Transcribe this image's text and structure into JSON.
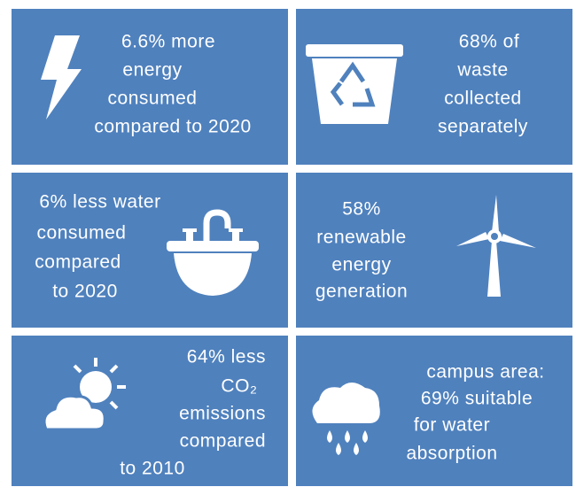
{
  "tiles": [
    {
      "lines": [
        "6.6% more",
        "energy",
        "consumed",
        "compared to 2020"
      ]
    },
    {
      "lines": [
        "68% of",
        "waste",
        "collected",
        "separately"
      ]
    },
    {
      "lines": [
        "6% less water",
        "consumed",
        "compared",
        "to 2020"
      ]
    },
    {
      "lines": [
        "58%",
        "renewable",
        "energy",
        "generation"
      ]
    },
    {
      "lines": [
        "64% less",
        "CO₂",
        "emissions",
        "compared",
        "to 2010"
      ]
    },
    {
      "lines": [
        "campus area:",
        "69% suitable",
        "for water",
        "absorption"
      ]
    }
  ]
}
